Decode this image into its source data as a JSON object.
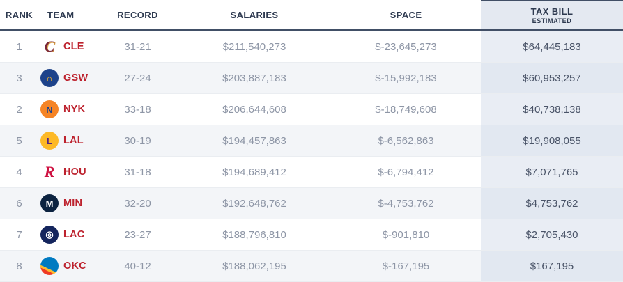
{
  "table": {
    "columns": [
      {
        "key": "rank",
        "label": "RANK"
      },
      {
        "key": "team",
        "label": "TEAM"
      },
      {
        "key": "record",
        "label": "RECORD"
      },
      {
        "key": "salaries",
        "label": "SALARIES"
      },
      {
        "key": "space",
        "label": "SPACE"
      },
      {
        "key": "tax",
        "label": "TAX BILL",
        "sublabel": "ESTIMATED"
      }
    ],
    "rows": [
      {
        "rank": "1",
        "team": "CLE",
        "record": "31-21",
        "salaries": "$211,540,273",
        "space": "$-23,645,273",
        "tax": "$64,445,183",
        "logo": {
          "icon": "cle-logo-icon",
          "shape": "text",
          "bg": "",
          "fg": "#7b2737",
          "glyph": "C",
          "shadow": "1px 1px 0 #d9a24a"
        }
      },
      {
        "rank": "3",
        "team": "GSW",
        "record": "27-24",
        "salaries": "$203,887,183",
        "space": "$-15,992,183",
        "tax": "$60,953,257",
        "logo": {
          "icon": "gsw-logo-icon",
          "shape": "circle",
          "bg": "#1d428a",
          "fg": "#fdb927",
          "glyph": "∩",
          "shadow": ""
        }
      },
      {
        "rank": "2",
        "team": "NYK",
        "record": "33-18",
        "salaries": "$206,644,608",
        "space": "$-18,749,608",
        "tax": "$40,738,138",
        "logo": {
          "icon": "nyk-logo-icon",
          "shape": "circle",
          "bg": "#f58426",
          "fg": "#1d428a",
          "glyph": "N",
          "shadow": ""
        }
      },
      {
        "rank": "5",
        "team": "LAL",
        "record": "30-19",
        "salaries": "$194,457,863",
        "space": "$-6,562,863",
        "tax": "$19,908,055",
        "logo": {
          "icon": "lal-logo-icon",
          "shape": "circle",
          "bg": "#fdb927",
          "fg": "#552583",
          "glyph": "L",
          "shadow": ""
        }
      },
      {
        "rank": "4",
        "team": "HOU",
        "record": "31-18",
        "salaries": "$194,689,412",
        "space": "$-6,794,412",
        "tax": "$7,071,765",
        "logo": {
          "icon": "hou-logo-icon",
          "shape": "text",
          "bg": "",
          "fg": "#ce1141",
          "glyph": "R",
          "shadow": ""
        }
      },
      {
        "rank": "6",
        "team": "MIN",
        "record": "32-20",
        "salaries": "$192,648,762",
        "space": "$-4,753,762",
        "tax": "$4,753,762",
        "logo": {
          "icon": "min-logo-icon",
          "shape": "circle",
          "bg": "#0c2340",
          "fg": "#ffffff",
          "glyph": "M",
          "shadow": ""
        }
      },
      {
        "rank": "7",
        "team": "LAC",
        "record": "23-27",
        "salaries": "$188,796,810",
        "space": "$-901,810",
        "tax": "$2,705,430",
        "logo": {
          "icon": "lac-logo-icon",
          "shape": "circle",
          "bg": "#14255d",
          "fg": "#ffffff",
          "glyph": "◎",
          "shadow": ""
        }
      },
      {
        "rank": "8",
        "team": "OKC",
        "record": "40-12",
        "salaries": "$188,062,195",
        "space": "$-167,195",
        "tax": "$167,195",
        "logo": {
          "icon": "okc-logo-icon",
          "shape": "circle",
          "bg": "linear-gradient(25deg, #ef3b24 28%, #fdbb30 28%, #fdbb30 38%, #007ac1 38%)",
          "fg": "#ffffff",
          "glyph": "",
          "shadow": ""
        }
      }
    ]
  },
  "colors": {
    "header_text": "#2e3a50",
    "header_border": "#414f66",
    "value_gray": "#8e96a6",
    "tax_value": "#4a5468",
    "team_red": "#bd222e",
    "alt_row_bg": "#f3f5f8",
    "tax_col_bg": "#e9edf4",
    "tax_header_bg": "#e4e9f1"
  }
}
